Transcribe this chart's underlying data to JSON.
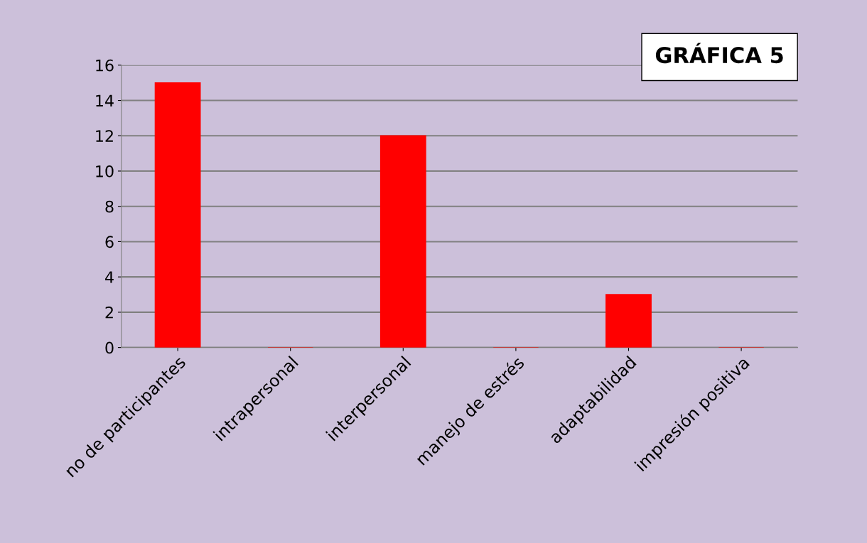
{
  "chart_data": {
    "type": "bar",
    "title": "GRÁFICA 5",
    "categories": [
      "no de participantes",
      "intrapersonal",
      "interpersonal",
      "manejo de estrés",
      "adaptabilidad",
      "impresión positiva"
    ],
    "values": [
      15,
      0,
      12,
      0,
      3,
      0
    ],
    "color": "#ff0000",
    "ylim": [
      0,
      16
    ],
    "yticks": [
      0,
      2,
      4,
      6,
      8,
      10,
      12,
      14,
      16
    ],
    "grid": "y",
    "legend": false
  }
}
